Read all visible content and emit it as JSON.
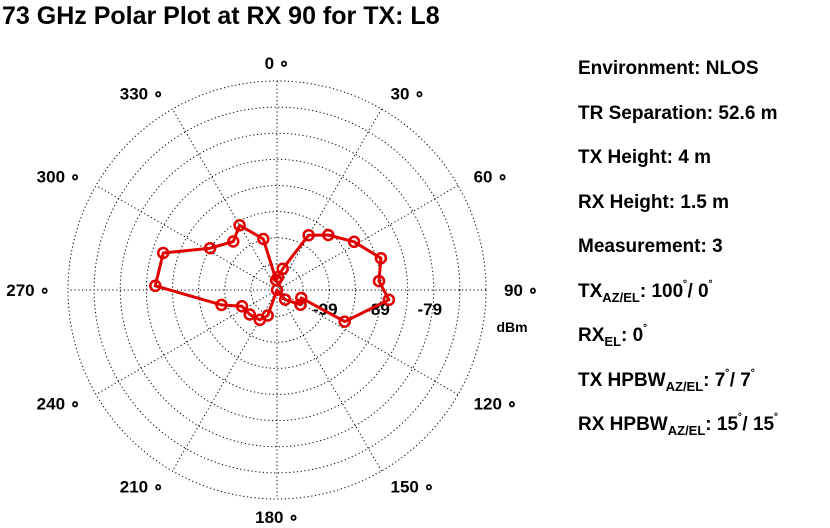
{
  "chart_data": {
    "type": "polar-line",
    "title": "73 GHz Polar Plot at RX 90 for TX: L8",
    "unit": "dBm",
    "radial_ticks": [
      "-99",
      "-89",
      "-79"
    ],
    "angle_labels": [
      "0",
      "30",
      "60",
      "90",
      "120",
      "150",
      "180",
      "210",
      "240",
      "270",
      "300",
      "330"
    ],
    "degree_symbol": "∘",
    "r_min_dbm": -109,
    "r_max_dbm": -69,
    "series": [
      {
        "color": "#e00000",
        "points": [
          {
            "az": 5,
            "dbm": -106.5
          },
          {
            "az": 15,
            "dbm": -104.8
          },
          {
            "az": 30,
            "dbm": -96.9
          },
          {
            "az": 43,
            "dbm": -94.6
          },
          {
            "az": 58,
            "dbm": -91.6
          },
          {
            "az": 73,
            "dbm": -88.2
          },
          {
            "az": 85,
            "dbm": -89.4
          },
          {
            "az": 95,
            "dbm": -87.5
          },
          {
            "az": 115,
            "dbm": -94.7
          },
          {
            "az": 108,
            "dbm": -104.1
          },
          {
            "az": 122,
            "dbm": -103.7
          },
          {
            "az": 140,
            "dbm": -106.6
          },
          {
            "az": 180,
            "dbm": -109
          },
          {
            "az": 200,
            "dbm": -103.8
          },
          {
            "az": 210,
            "dbm": -102.4
          },
          {
            "az": 228,
            "dbm": -102.0
          },
          {
            "az": 245,
            "dbm": -101.6
          },
          {
            "az": 255,
            "dbm": -98.0
          },
          {
            "az": 272,
            "dbm": -85.7
          },
          {
            "az": 288,
            "dbm": -86.1
          },
          {
            "az": 302,
            "dbm": -93.9
          },
          {
            "az": 318,
            "dbm": -96.5
          },
          {
            "az": 330,
            "dbm": -94.7
          },
          {
            "az": 345,
            "dbm": -98.9
          },
          {
            "az": 355,
            "dbm": -107.1
          }
        ]
      }
    ],
    "grid": true
  },
  "info": {
    "environment": "Environment: NLOS",
    "tr_separation": "TR Separation: 52.6 m",
    "tx_height": "TX Height: 4 m",
    "rx_height": "RX Height: 1.5 m",
    "measurement": "Measurement: 3",
    "tx_angle": {
      "prefix": "TX",
      "sub": "AZ/EL",
      "mid": ": 100",
      "sup": "˚",
      "sep": "/ 0",
      "sup2": "˚"
    },
    "rx_el": {
      "prefix": "RX",
      "sub": "EL",
      "mid": ": 0",
      "sup": "˚"
    },
    "tx_hpbw": {
      "prefix": "TX HPBW",
      "sub": "AZ/EL",
      "mid": ": 7",
      "sup": "˚",
      "sep": "/ 7",
      "sup2": "˚"
    },
    "rx_hpbw": {
      "prefix": "RX HPBW",
      "sub": "AZ/EL",
      "mid": ": 15",
      "sup": "˚",
      "sep": "/ 15",
      "sup2": "˚"
    }
  }
}
